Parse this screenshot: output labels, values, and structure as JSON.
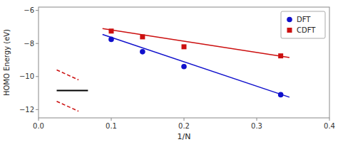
{
  "chart_data": {
    "type": "scatter",
    "xlabel": "1/N",
    "ylabel": "HOMO Energy (eV)",
    "xlim": [
      0.0,
      0.4
    ],
    "ylim": [
      -12.5,
      -5.8
    ],
    "xticks": [
      {
        "value": 0.0,
        "label": "0.0"
      },
      0.1,
      0.2,
      0.3,
      0.4
    ],
    "yticks": [
      {
        "value": -6,
        "label": "−6"
      },
      {
        "value": -8,
        "label": "−8"
      },
      {
        "value": -10,
        "label": "−10"
      },
      {
        "value": -12,
        "label": "−12"
      }
    ],
    "grid": false,
    "legend": "upper-right",
    "series": [
      {
        "type": "line",
        "color": "#1010cc",
        "line_style": "solid",
        "x": [
          0.088,
          0.345
        ],
        "values": [
          -7.45,
          -11.25
        ]
      },
      {
        "type": "line",
        "color": "#cc1010",
        "line_style": "solid",
        "x": [
          0.088,
          0.345
        ],
        "values": [
          -7.1,
          -8.85
        ]
      },
      {
        "type": "scatter",
        "name": "DFT",
        "color": "#1010cc",
        "marker": "circle",
        "x": [
          0.1,
          0.143,
          0.2,
          0.333
        ],
        "values": [
          -7.75,
          -8.5,
          -9.4,
          -11.1
        ]
      },
      {
        "type": "scatter",
        "name": "CDFT",
        "color": "#cc1010",
        "marker": "square",
        "x": [
          0.1,
          0.143,
          0.2,
          0.333
        ],
        "values": [
          -7.25,
          -7.6,
          -8.2,
          -8.75
        ]
      },
      {
        "type": "line",
        "color": "#cc1010",
        "line_style": "dashed",
        "x": [
          0.025,
          0.055
        ],
        "values": [
          -9.6,
          -10.2
        ]
      },
      {
        "type": "line",
        "color": "#cc1010",
        "line_style": "dashed",
        "x": [
          0.025,
          0.055
        ],
        "values": [
          -11.5,
          -12.1
        ]
      },
      {
        "type": "line",
        "color": "black",
        "line_style": "solid",
        "x": [
          0.025,
          0.068
        ],
        "values": [
          -10.85,
          -10.85
        ]
      }
    ]
  }
}
